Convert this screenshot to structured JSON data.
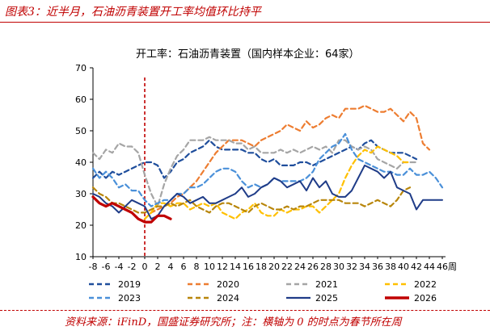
{
  "header": {
    "caption": "图表3：近半月，石油沥青装置开工率均值环比持平"
  },
  "source": {
    "text": "资料来源：iFinD，国盛证券研究所；注：横轴为 0 的时点为春节所在周"
  },
  "chart_data": {
    "type": "line",
    "title": "开工率：石油沥青装置（国内样本企业：64家）",
    "xlabel": "周",
    "ylabel": "",
    "xlim": [
      -8,
      46
    ],
    "ylim": [
      10,
      70
    ],
    "x_ticks": [
      -8,
      -6,
      -4,
      -2,
      0,
      2,
      4,
      6,
      8,
      10,
      12,
      14,
      16,
      18,
      20,
      22,
      24,
      26,
      28,
      30,
      32,
      34,
      36,
      38,
      40,
      42,
      44,
      46
    ],
    "y_ticks": [
      10,
      20,
      30,
      40,
      50,
      60,
      70
    ],
    "reference_line": {
      "x": 0,
      "style": "dashed",
      "color": "#c00000"
    },
    "legend_position": "bottom",
    "grid": false,
    "series": [
      {
        "name": "2019",
        "color": "#1f4e9c",
        "dash": "6,4",
        "width": 2.2,
        "x": [
          -8,
          -7,
          -6,
          -5,
          -4,
          -3,
          -2,
          -1,
          0,
          1,
          2,
          3,
          4,
          5,
          6,
          7,
          8,
          9,
          10,
          11,
          12,
          13,
          14,
          15,
          16,
          17,
          18,
          19,
          20,
          21,
          22,
          23,
          24,
          25,
          26,
          27,
          28,
          29,
          30,
          31,
          32,
          33,
          34,
          35,
          36,
          37,
          38,
          39,
          40,
          41,
          42
        ],
        "y": [
          35,
          37,
          35,
          37,
          36,
          37,
          38,
          39,
          40,
          40,
          39,
          35,
          37,
          40,
          41,
          43,
          44,
          45,
          47,
          45,
          44,
          44,
          44,
          44,
          43,
          43,
          41,
          40,
          41,
          39,
          39,
          39,
          40,
          40,
          39,
          40,
          41,
          42,
          43,
          44,
          45,
          44,
          46,
          47,
          45,
          44,
          43,
          43,
          43,
          42,
          41
        ]
      },
      {
        "name": "2020",
        "color": "#ed7d31",
        "dash": "6,4",
        "width": 2.2,
        "x": [
          0,
          1,
          2,
          3,
          4,
          5,
          6,
          7,
          8,
          9,
          10,
          11,
          12,
          13,
          14,
          15,
          16,
          17,
          18,
          19,
          20,
          21,
          22,
          23,
          24,
          25,
          26,
          27,
          28,
          29,
          30,
          31,
          32,
          33,
          34,
          35,
          36,
          37,
          38,
          39,
          40,
          41,
          42,
          43,
          44
        ],
        "y": [
          22,
          24,
          25,
          26,
          27,
          29,
          30,
          32,
          34,
          37,
          40,
          43,
          45,
          47,
          47,
          47,
          46,
          45,
          47,
          48,
          49,
          50,
          52,
          51,
          50,
          53,
          51,
          52,
          54,
          55,
          54,
          57,
          57,
          57,
          58,
          57,
          56,
          56,
          57,
          55,
          53,
          56,
          54,
          46,
          44
        ]
      },
      {
        "name": "2021",
        "color": "#a5a5a5",
        "dash": "6,4",
        "width": 2.2,
        "x": [
          -8,
          -7,
          -6,
          -5,
          -4,
          -3,
          -2,
          -1,
          0,
          1,
          2,
          3,
          4,
          5,
          6,
          7,
          8,
          9,
          10,
          11,
          12,
          13,
          14,
          15,
          16,
          17,
          18,
          19,
          20,
          21,
          22,
          23,
          24,
          25,
          26,
          27,
          28,
          29,
          30,
          31,
          32,
          33,
          34,
          35,
          36,
          37,
          38,
          39,
          40,
          41,
          42
        ],
        "y": [
          43,
          41,
          44,
          43,
          46,
          45,
          45,
          43,
          36,
          30,
          26,
          33,
          38,
          42,
          44,
          47,
          47,
          47,
          48,
          47,
          47,
          47,
          46,
          46,
          44,
          45,
          43,
          43,
          43,
          44,
          43,
          44,
          43,
          44,
          45,
          44,
          45,
          43,
          47,
          47,
          45,
          44,
          45,
          44,
          41,
          40,
          39,
          38,
          40,
          40,
          40
        ]
      },
      {
        "name": "2022",
        "color": "#ffc000",
        "dash": "6,4",
        "width": 2.2,
        "x": [
          0,
          1,
          2,
          3,
          4,
          5,
          6,
          7,
          8,
          9,
          10,
          11,
          12,
          13,
          14,
          15,
          16,
          17,
          18,
          19,
          20,
          21,
          22,
          23,
          24,
          25,
          26,
          27,
          28,
          29,
          30,
          31,
          32,
          33,
          34,
          35,
          36,
          37,
          38,
          39,
          40,
          41
        ],
        "y": [
          22,
          24,
          27,
          27,
          26,
          27,
          27,
          25,
          26,
          27,
          26,
          27,
          24,
          23,
          22,
          24,
          25,
          27,
          24,
          23,
          23,
          25,
          24,
          25,
          25,
          26,
          26,
          24,
          26,
          28,
          30,
          35,
          39,
          42,
          44,
          43,
          45,
          44,
          43,
          42,
          40,
          40
        ]
      },
      {
        "name": "2023",
        "color": "#4a90d9",
        "dash": "6,4",
        "width": 2.2,
        "x": [
          -8,
          -7,
          -6,
          -5,
          -4,
          -3,
          -2,
          -1,
          0,
          1,
          2,
          3,
          4,
          5,
          6,
          7,
          8,
          9,
          10,
          11,
          12,
          13,
          14,
          15,
          16,
          17,
          18,
          19,
          20,
          21,
          22,
          23,
          24,
          25,
          26,
          27,
          28,
          29,
          30,
          31,
          32,
          33,
          34,
          35,
          36,
          37,
          38,
          39,
          40,
          41,
          42,
          43,
          44,
          45,
          46
        ],
        "y": [
          38,
          35,
          37,
          35,
          32,
          33,
          31,
          31,
          28,
          26,
          27,
          28,
          28,
          30,
          30,
          32,
          32,
          33,
          35,
          37,
          38,
          38,
          37,
          34,
          32,
          33,
          32,
          33,
          35,
          34,
          34,
          34,
          34,
          35,
          37,
          41,
          43,
          45,
          46,
          49,
          44,
          41,
          40,
          39,
          38,
          37,
          37,
          36,
          36,
          38,
          36,
          36,
          37,
          35,
          32
        ]
      },
      {
        "name": "2024",
        "color": "#b8860b",
        "dash": "6,4",
        "width": 2.2,
        "x": [
          -8,
          -7,
          -6,
          -5,
          -4,
          -3,
          -2,
          -1,
          0,
          1,
          2,
          3,
          4,
          5,
          6,
          7,
          8,
          9,
          10,
          11,
          12,
          13,
          14,
          15,
          16,
          17,
          18,
          19,
          20,
          21,
          22,
          23,
          24,
          25,
          26,
          27,
          28,
          29,
          30,
          31,
          32,
          33,
          34,
          35,
          36,
          37,
          38,
          39,
          40,
          41
        ],
        "y": [
          32,
          30,
          29,
          27,
          27,
          26,
          25,
          24,
          24,
          25,
          26,
          26,
          27,
          26,
          27,
          28,
          26,
          25,
          24,
          26,
          27,
          27,
          26,
          25,
          24,
          26,
          27,
          26,
          25,
          25,
          26,
          25,
          26,
          26,
          27,
          28,
          28,
          28,
          28,
          27,
          27,
          27,
          26,
          27,
          28,
          27,
          26,
          28,
          31,
          32
        ]
      },
      {
        "name": "2025",
        "color": "#1f3c88",
        "dash": "",
        "width": 2.0,
        "x": [
          -8,
          -7,
          -6,
          -5,
          -4,
          -3,
          -2,
          -1,
          0,
          1,
          2,
          3,
          4,
          5,
          6,
          7,
          8,
          9,
          10,
          11,
          12,
          13,
          14,
          15,
          16,
          17,
          18,
          19,
          20,
          21,
          22,
          23,
          24,
          25,
          26,
          27,
          28,
          29,
          30,
          31,
          32,
          33,
          34,
          35,
          36,
          37,
          38,
          39,
          40,
          41,
          42,
          43,
          44,
          45,
          46
        ],
        "y": [
          30,
          29,
          27,
          26,
          24,
          26,
          28,
          27,
          26,
          22,
          23,
          26,
          28,
          30,
          29,
          27,
          28,
          29,
          27,
          27,
          28,
          29,
          30,
          32,
          29,
          30,
          32,
          33,
          35,
          34,
          32,
          33,
          34,
          31,
          35,
          32,
          34,
          30,
          29,
          29,
          31,
          35,
          39,
          38,
          37,
          35,
          37,
          32,
          31,
          30,
          25,
          28,
          28,
          28,
          28
        ]
      },
      {
        "name": "2026",
        "color": "#c00000",
        "dash": "",
        "width": 3.2,
        "x": [
          -8,
          -7,
          -6,
          -5,
          -4,
          -3,
          -2,
          -1,
          0,
          1,
          2,
          3,
          4
        ],
        "y": [
          29,
          27,
          26,
          27,
          26,
          25,
          24,
          22,
          21,
          21,
          23,
          23,
          22
        ]
      }
    ]
  }
}
